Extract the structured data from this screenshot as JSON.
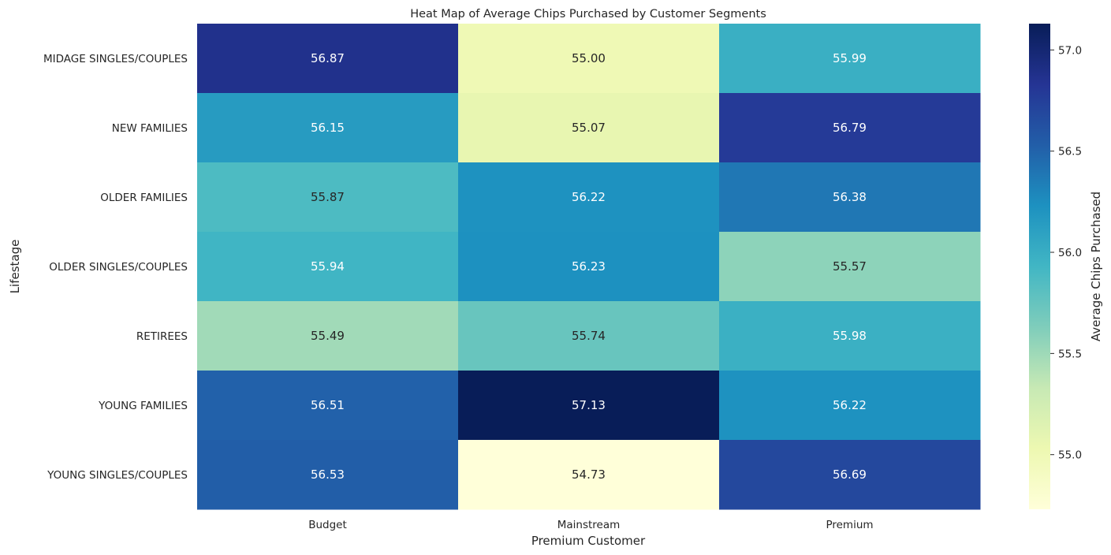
{
  "chart_data": {
    "type": "heatmap",
    "title": "Heat Map of Average Chips Purchased by Customer Segments",
    "xlabel": "Premium Customer",
    "ylabel": "Lifestage",
    "x_categories": [
      "Budget",
      "Mainstream",
      "Premium"
    ],
    "y_categories": [
      "MIDAGE SINGLES/COUPLES",
      "NEW FAMILIES",
      "OLDER FAMILIES",
      "OLDER SINGLES/COUPLES",
      "RETIREES",
      "YOUNG FAMILIES",
      "YOUNG SINGLES/COUPLES"
    ],
    "values": [
      [
        56.87,
        55.0,
        55.99
      ],
      [
        56.15,
        55.07,
        56.79
      ],
      [
        55.87,
        56.22,
        56.38
      ],
      [
        55.94,
        56.23,
        55.57
      ],
      [
        55.49,
        55.74,
        55.98
      ],
      [
        56.51,
        57.13,
        56.22
      ],
      [
        56.53,
        54.73,
        56.69
      ]
    ],
    "value_format": "0.00",
    "colormap": "YlGnBu",
    "colorbar": {
      "label": "Average Chips Purchased",
      "range": [
        54.73,
        57.13
      ],
      "ticks": [
        "55.0",
        "55.5",
        "56.0",
        "56.5",
        "57.0"
      ]
    },
    "colors": {
      "text_dark": "#262626",
      "text_light": "#ffffff"
    }
  }
}
